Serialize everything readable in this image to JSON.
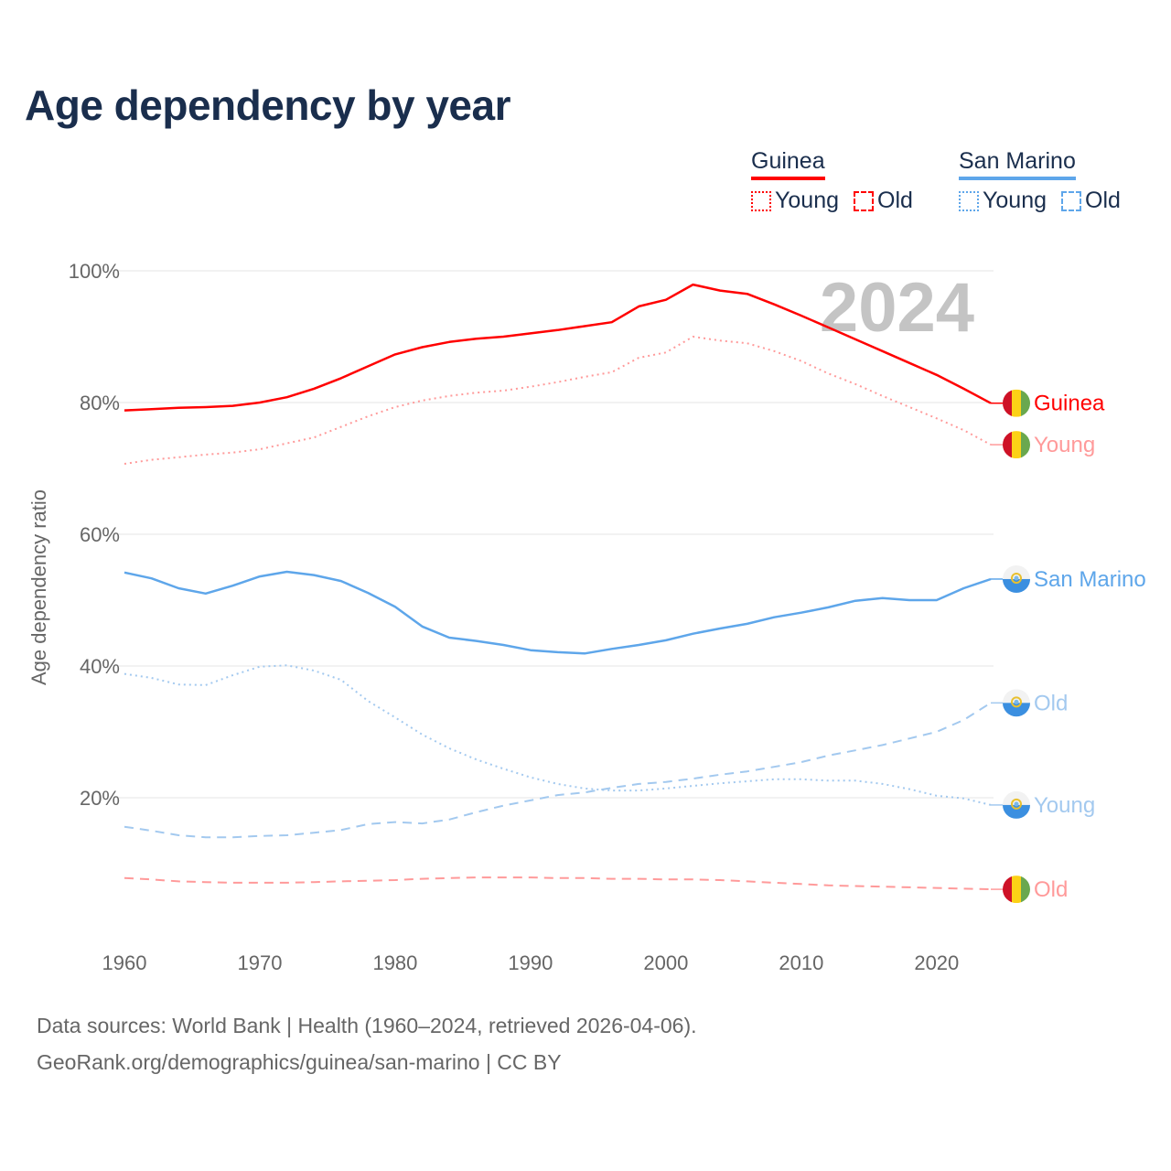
{
  "title": "Age dependency by year",
  "legend": {
    "groups": [
      {
        "name": "Guinea",
        "color": "#ff0000",
        "items": [
          "Young",
          "Old"
        ]
      },
      {
        "name": "San Marino",
        "color": "#5ea6ea",
        "items": [
          "Young",
          "Old"
        ]
      }
    ]
  },
  "footer": {
    "line1": "Data sources: World Bank | Health (1960–2024, retrieved 2026-04-06).",
    "line2": "GeoRank.org/demographics/guinea/san-marino | CC BY"
  },
  "chart_data": {
    "type": "line",
    "title": "Age dependency by year",
    "ylabel": "Age dependency ratio",
    "xlabel": "",
    "year_label": "2024",
    "xlim": [
      1960,
      2024
    ],
    "ylim": [
      0,
      100
    ],
    "x_ticks": [
      "1960",
      "1970",
      "1980",
      "1990",
      "2000",
      "2010",
      "2020"
    ],
    "y_ticks": [
      "20%",
      "40%",
      "60%",
      "80%",
      "100%"
    ],
    "grid": true,
    "x": [
      1960,
      1962,
      1964,
      1966,
      1968,
      1970,
      1972,
      1974,
      1976,
      1978,
      1980,
      1982,
      1984,
      1986,
      1988,
      1990,
      1992,
      1994,
      1996,
      1998,
      2000,
      2002,
      2004,
      2006,
      2008,
      2010,
      2012,
      2014,
      2016,
      2018,
      2020,
      2022,
      2024
    ],
    "series": [
      {
        "name": "Guinea",
        "end_label": "Guinea",
        "country": "guinea",
        "style": "solid",
        "color": "#ff0000",
        "values": [
          78.8,
          79.0,
          79.2,
          79.3,
          79.5,
          80.0,
          80.8,
          82.1,
          83.7,
          85.5,
          87.3,
          88.4,
          89.2,
          89.7,
          90.0,
          90.5,
          91.0,
          91.6,
          92.2,
          94.6,
          95.6,
          97.9,
          97.0,
          96.5,
          94.9,
          93.2,
          91.4,
          89.6,
          87.8,
          86.0,
          84.2,
          82.1,
          79.9
        ]
      },
      {
        "name": "Guinea Young",
        "end_label": "Young",
        "country": "guinea",
        "style": "dotted",
        "color": "#ff9a9a",
        "values": [
          70.7,
          71.3,
          71.7,
          72.1,
          72.4,
          72.9,
          73.8,
          74.7,
          76.3,
          77.9,
          79.3,
          80.3,
          81.0,
          81.5,
          81.8,
          82.4,
          83.1,
          83.9,
          84.6,
          86.8,
          87.6,
          90.0,
          89.4,
          89.0,
          87.8,
          86.3,
          84.4,
          82.8,
          81.0,
          79.3,
          77.6,
          75.8,
          73.6
        ]
      },
      {
        "name": "Guinea Old",
        "end_label": "Old",
        "country": "guinea",
        "style": "dashed",
        "color": "#ff9a9a",
        "values": [
          7.8,
          7.6,
          7.3,
          7.2,
          7.1,
          7.1,
          7.1,
          7.2,
          7.3,
          7.4,
          7.5,
          7.7,
          7.8,
          7.9,
          7.9,
          7.9,
          7.8,
          7.8,
          7.7,
          7.7,
          7.6,
          7.6,
          7.5,
          7.3,
          7.1,
          6.9,
          6.7,
          6.6,
          6.5,
          6.4,
          6.3,
          6.2,
          6.1
        ]
      },
      {
        "name": "San Marino",
        "end_label": "San Marino",
        "country": "san-marino",
        "style": "solid",
        "color": "#5ea6ea",
        "values": [
          54.2,
          53.3,
          51.8,
          51.0,
          52.2,
          53.6,
          54.3,
          53.8,
          52.9,
          51.1,
          49.0,
          46.0,
          44.3,
          43.8,
          43.2,
          42.4,
          42.1,
          41.9,
          42.6,
          43.2,
          43.9,
          44.9,
          45.7,
          46.4,
          47.4,
          48.1,
          48.9,
          49.9,
          50.3,
          50.0,
          50.0,
          51.8,
          53.2
        ]
      },
      {
        "name": "San Marino Young",
        "end_label": "Young",
        "country": "san-marino",
        "style": "dotted",
        "color": "#a3c9ef",
        "values": [
          38.8,
          38.2,
          37.2,
          37.1,
          38.6,
          39.9,
          40.1,
          39.3,
          37.9,
          34.7,
          32.2,
          29.6,
          27.5,
          25.8,
          24.4,
          23.1,
          22.1,
          21.4,
          21.1,
          21.1,
          21.4,
          21.8,
          22.2,
          22.5,
          22.8,
          22.8,
          22.6,
          22.6,
          22.1,
          21.3,
          20.3,
          19.9,
          18.9
        ]
      },
      {
        "name": "San Marino Old",
        "end_label": "Old",
        "country": "san-marino",
        "style": "dashed",
        "color": "#a3c9ef",
        "values": [
          15.6,
          15.0,
          14.3,
          14.0,
          14.0,
          14.2,
          14.3,
          14.7,
          15.1,
          16.0,
          16.3,
          16.1,
          16.7,
          17.8,
          18.8,
          19.6,
          20.4,
          20.8,
          21.5,
          22.1,
          22.4,
          22.9,
          23.5,
          24.0,
          24.7,
          25.4,
          26.4,
          27.2,
          28.0,
          29.0,
          30.0,
          31.8,
          34.4
        ]
      }
    ]
  }
}
